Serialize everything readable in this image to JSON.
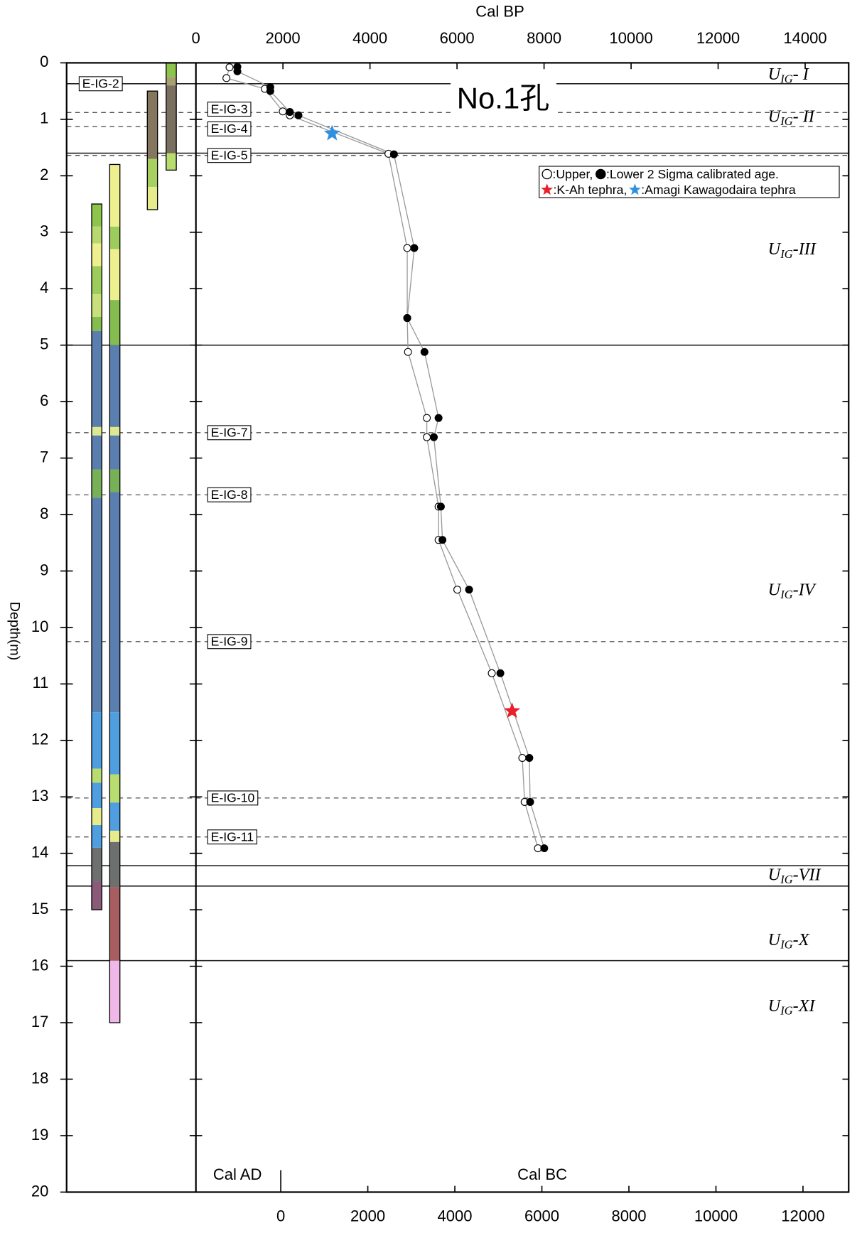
{
  "chart_data": {
    "type": "scatter",
    "title": "No.1孔",
    "xlabel": "Cal BP",
    "ylabel": "Depth(m)",
    "xlim": [
      0,
      15000
    ],
    "xticks": [
      0,
      2000,
      4000,
      6000,
      8000,
      10000,
      12000,
      14000
    ],
    "ylim": [
      0,
      20
    ],
    "yticks": [
      0,
      1,
      2,
      3,
      4,
      5,
      6,
      7,
      8,
      9,
      10,
      11,
      12,
      13,
      14,
      15,
      16,
      17,
      18,
      19,
      20
    ],
    "x2label_left": "Cal AD",
    "x2label": "Cal BC",
    "x2lim": [
      -1950,
      13050
    ],
    "x2ticks": [
      0,
      2000,
      4000,
      6000,
      8000,
      10000,
      12000
    ],
    "series": [
      {
        "name": ":Upper,",
        "marker": "open",
        "color": "#000000",
        "x": [
          773,
          701,
          1583,
          1996,
          2158,
          4424,
          4856,
          4856,
          4874,
          5306,
          5306,
          5576,
          5576,
          6007,
          6799,
          7500,
          7554,
          7860
        ],
        "y": [
          0.08,
          0.27,
          0.46,
          0.86,
          0.93,
          1.61,
          3.28,
          4.52,
          5.12,
          6.29,
          6.63,
          7.86,
          8.45,
          9.33,
          10.81,
          12.31,
          13.09,
          13.91
        ]
      },
      {
        "name": ":Lower 2 Sigma calibrated age.",
        "marker": "filled",
        "color": "#000000",
        "x": [
          953,
          953,
          1709,
          1709,
          2158,
          2356,
          4550,
          5018,
          4856,
          5252,
          5576,
          5468,
          5629,
          5665,
          6277,
          6996,
          7662,
          7680,
          8004
        ],
        "y": [
          0.07,
          0.15,
          0.43,
          0.5,
          0.87,
          0.93,
          1.62,
          3.28,
          4.52,
          5.12,
          6.29,
          6.63,
          7.86,
          8.45,
          9.33,
          10.81,
          12.31,
          13.09,
          13.91
        ]
      }
    ],
    "tephra": [
      {
        "name": ":K-Ah tephra,",
        "color": "#e8202a",
        "x": 7266,
        "y": 11.48
      },
      {
        "name": ":Amagi Kawagodaira tephra",
        "color": "#3090e0",
        "x": 3129,
        "y": 1.25
      }
    ],
    "boundaries": [
      {
        "depth": 0.37,
        "style": "solid"
      },
      {
        "depth": 0.88,
        "style": "dashed"
      },
      {
        "depth": 1.13,
        "style": "dashed"
      },
      {
        "depth": 1.6,
        "style": "solid"
      },
      {
        "depth": 1.64,
        "style": "dashed"
      },
      {
        "depth": 5.0,
        "style": "solid"
      },
      {
        "depth": 6.55,
        "style": "dashed"
      },
      {
        "depth": 7.65,
        "style": "dashed"
      },
      {
        "depth": 10.25,
        "style": "dashed"
      },
      {
        "depth": 13.02,
        "style": "dashed"
      },
      {
        "depth": 13.71,
        "style": "dashed"
      },
      {
        "depth": 14.22,
        "style": "solid"
      },
      {
        "depth": 14.58,
        "style": "solid"
      },
      {
        "depth": 15.9,
        "style": "solid"
      }
    ],
    "tephra_labels": [
      {
        "label": "E-IG-2",
        "depth": 0.37
      },
      {
        "label": "E-IG-3",
        "depth": 0.82
      },
      {
        "label": "E-IG-4",
        "depth": 1.17
      },
      {
        "label": "E-IG-5",
        "depth": 1.64
      },
      {
        "label": "E-IG-7",
        "depth": 6.55
      },
      {
        "label": "E-IG-8",
        "depth": 7.65
      },
      {
        "label": "E-IG-9",
        "depth": 10.25
      },
      {
        "label": "E-IG-10",
        "depth": 13.02
      },
      {
        "label": "E-IG-11",
        "depth": 13.71
      }
    ],
    "units": [
      {
        "main": "U",
        "sub": "IG",
        "suffix": "- I",
        "depth": 0.22
      },
      {
        "main": "U",
        "sub": "IG",
        "suffix": "- II",
        "depth": 0.97
      },
      {
        "main": "U",
        "sub": "IG",
        "suffix": "-III",
        "depth": 3.32
      },
      {
        "main": "U",
        "sub": "IG",
        "suffix": "-IV",
        "depth": 9.35
      },
      {
        "main": "U",
        "sub": "IG",
        "suffix": "-VII",
        "depth": 14.4
      },
      {
        "main": "U",
        "sub": "IG",
        "suffix": "-X",
        "depth": 15.55
      },
      {
        "main": "U",
        "sub": "IG",
        "suffix": "-XI",
        "depth": 16.72
      }
    ],
    "cores": [
      {
        "segments": [
          {
            "top": 2.5,
            "bottom": 2.9,
            "color": "#8cc44c"
          },
          {
            "top": 2.9,
            "bottom": 3.2,
            "color": "#b8d870"
          },
          {
            "top": 3.2,
            "bottom": 3.6,
            "color": "#eef090"
          },
          {
            "top": 3.6,
            "bottom": 4.1,
            "color": "#9ccc5c"
          },
          {
            "top": 4.1,
            "bottom": 4.5,
            "color": "#c8e07c"
          },
          {
            "top": 4.5,
            "bottom": 4.75,
            "color": "#84bc50"
          },
          {
            "top": 4.75,
            "bottom": 6.45,
            "color": "#5a7fae"
          },
          {
            "top": 6.45,
            "bottom": 6.6,
            "color": "#dde890"
          },
          {
            "top": 6.6,
            "bottom": 7.2,
            "color": "#5a7fae"
          },
          {
            "top": 7.2,
            "bottom": 7.7,
            "color": "#78b058"
          },
          {
            "top": 7.7,
            "bottom": 11.5,
            "color": "#5a7fae"
          },
          {
            "top": 11.5,
            "bottom": 12.5,
            "color": "#4e9ee0"
          },
          {
            "top": 12.5,
            "bottom": 12.75,
            "color": "#b8dc70"
          },
          {
            "top": 12.75,
            "bottom": 13.2,
            "color": "#4e9ee0"
          },
          {
            "top": 13.2,
            "bottom": 13.5,
            "color": "#e6ec8c"
          },
          {
            "top": 13.5,
            "bottom": 13.9,
            "color": "#4e9ee0"
          },
          {
            "top": 13.9,
            "bottom": 14.5,
            "color": "#6e7070"
          },
          {
            "top": 14.5,
            "bottom": 15.0,
            "color": "#8a5a78"
          }
        ]
      },
      {
        "segments": [
          {
            "top": 1.8,
            "bottom": 2.9,
            "color": "#eef090"
          },
          {
            "top": 2.9,
            "bottom": 3.3,
            "color": "#9ccc5c"
          },
          {
            "top": 3.3,
            "bottom": 4.2,
            "color": "#eef090"
          },
          {
            "top": 4.2,
            "bottom": 5.0,
            "color": "#84bc50"
          },
          {
            "top": 5.0,
            "bottom": 6.45,
            "color": "#5a7fae"
          },
          {
            "top": 6.45,
            "bottom": 6.6,
            "color": "#dde890"
          },
          {
            "top": 6.6,
            "bottom": 7.2,
            "color": "#5a7fae"
          },
          {
            "top": 7.2,
            "bottom": 7.6,
            "color": "#78b058"
          },
          {
            "top": 7.6,
            "bottom": 11.5,
            "color": "#5a7fae"
          },
          {
            "top": 11.5,
            "bottom": 12.6,
            "color": "#4e9ee0"
          },
          {
            "top": 12.6,
            "bottom": 13.1,
            "color": "#b8dc70"
          },
          {
            "top": 13.1,
            "bottom": 13.6,
            "color": "#4e9ee0"
          },
          {
            "top": 13.6,
            "bottom": 13.8,
            "color": "#e6ec8c"
          },
          {
            "top": 13.8,
            "bottom": 14.6,
            "color": "#6e7070"
          },
          {
            "top": 14.6,
            "bottom": 15.9,
            "color": "#a85e60"
          },
          {
            "top": 15.9,
            "bottom": 17.0,
            "color": "#f0b8e8"
          }
        ]
      },
      {
        "segments": [
          {
            "top": 0.5,
            "bottom": 1.7,
            "color": "#857660"
          },
          {
            "top": 1.7,
            "bottom": 2.2,
            "color": "#a8d060"
          },
          {
            "top": 2.2,
            "bottom": 2.6,
            "color": "#e6ec8c"
          }
        ]
      },
      {
        "segments": [
          {
            "top": 0.0,
            "bottom": 0.25,
            "color": "#8cc44c"
          },
          {
            "top": 0.25,
            "bottom": 0.4,
            "color": "#a8a070"
          },
          {
            "top": 0.4,
            "bottom": 1.6,
            "color": "#7a7060"
          },
          {
            "top": 1.6,
            "bottom": 1.9,
            "color": "#b8dc70"
          }
        ]
      }
    ]
  }
}
